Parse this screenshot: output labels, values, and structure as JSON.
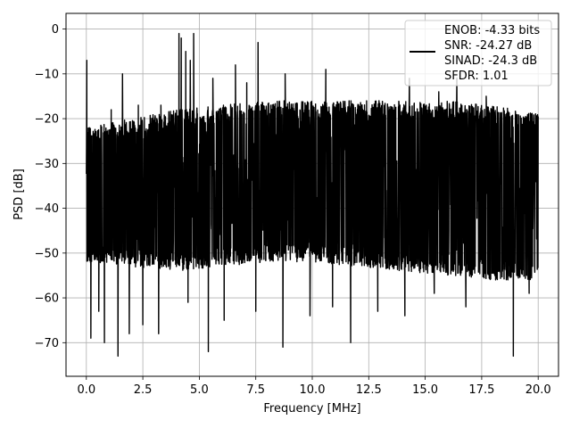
{
  "chart_data": {
    "type": "line",
    "title": "",
    "xlabel": "Frequency [MHz]",
    "ylabel": "PSD [dB]",
    "xlim": [
      -0.9,
      20.9
    ],
    "ylim": [
      -77.5,
      3.5
    ],
    "xticks": [
      0.0,
      2.5,
      5.0,
      7.5,
      10.0,
      12.5,
      15.0,
      17.5,
      20.0
    ],
    "xtick_labels": [
      "0.0",
      "2.5",
      "5.0",
      "7.5",
      "10.0",
      "12.5",
      "15.0",
      "17.5",
      "20.0"
    ],
    "yticks": [
      0,
      -10,
      -20,
      -30,
      -40,
      -50,
      -60,
      -70
    ],
    "ytick_labels": [
      "0",
      "−10",
      "−20",
      "−30",
      "−40",
      "−50",
      "−60",
      "−70"
    ],
    "grid": true,
    "legend_position": "top-right",
    "legend_lines": [
      "ENOB: -4.33 bits",
      "SNR: -24.27 dB",
      "SINAD: -24.3 dB",
      "SFDR: 1.01"
    ],
    "series_color": "#000000",
    "band": {
      "upper_x": [
        0.0,
        2.0,
        4.0,
        6.0,
        8.0,
        10.0,
        12.0,
        14.0,
        16.0,
        18.0,
        20.0
      ],
      "upper_y": [
        -22,
        -20,
        -18,
        -17,
        -16,
        -16,
        -16,
        -16,
        -16,
        -17,
        -19
      ],
      "lower_x": [
        0.0,
        2.0,
        4.0,
        6.0,
        8.0,
        10.0,
        12.0,
        14.0,
        16.0,
        18.0,
        20.0
      ],
      "lower_y": [
        -52,
        -53,
        -54,
        -53,
        -52,
        -52,
        -53,
        -54,
        -55,
        -56,
        -56
      ]
    },
    "spikes": [
      {
        "x": 0.02,
        "y": -7
      },
      {
        "x": 1.1,
        "y": -18
      },
      {
        "x": 1.6,
        "y": -10
      },
      {
        "x": 2.3,
        "y": -17
      },
      {
        "x": 3.3,
        "y": -17
      },
      {
        "x": 4.1,
        "y": -1
      },
      {
        "x": 4.2,
        "y": -2
      },
      {
        "x": 4.4,
        "y": -5
      },
      {
        "x": 4.6,
        "y": -7
      },
      {
        "x": 4.75,
        "y": -1
      },
      {
        "x": 5.6,
        "y": -11
      },
      {
        "x": 6.6,
        "y": -8
      },
      {
        "x": 7.1,
        "y": -12
      },
      {
        "x": 7.6,
        "y": -3
      },
      {
        "x": 8.8,
        "y": -10
      },
      {
        "x": 10.6,
        "y": -9
      },
      {
        "x": 14.3,
        "y": -11
      },
      {
        "x": 15.6,
        "y": -14
      },
      {
        "x": 16.4,
        "y": -11
      },
      {
        "x": 17.7,
        "y": -15
      }
    ],
    "dips": [
      {
        "x": 0.2,
        "y": -69
      },
      {
        "x": 0.55,
        "y": -63
      },
      {
        "x": 0.8,
        "y": -70
      },
      {
        "x": 1.4,
        "y": -73
      },
      {
        "x": 1.9,
        "y": -68
      },
      {
        "x": 2.5,
        "y": -66
      },
      {
        "x": 3.2,
        "y": -68
      },
      {
        "x": 4.5,
        "y": -61
      },
      {
        "x": 5.4,
        "y": -72
      },
      {
        "x": 6.1,
        "y": -65
      },
      {
        "x": 7.5,
        "y": -63
      },
      {
        "x": 8.7,
        "y": -71
      },
      {
        "x": 9.9,
        "y": -64
      },
      {
        "x": 10.9,
        "y": -62
      },
      {
        "x": 11.7,
        "y": -70
      },
      {
        "x": 12.9,
        "y": -63
      },
      {
        "x": 14.1,
        "y": -64
      },
      {
        "x": 15.4,
        "y": -59
      },
      {
        "x": 16.8,
        "y": -62
      },
      {
        "x": 18.9,
        "y": -73
      },
      {
        "x": 19.6,
        "y": -59
      }
    ]
  }
}
